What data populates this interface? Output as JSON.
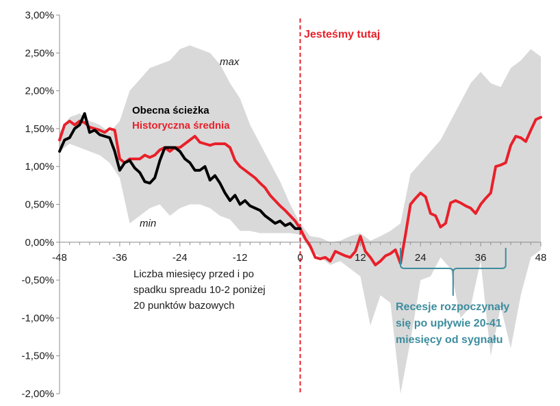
{
  "chart_data": {
    "type": "line",
    "title": "",
    "xlabel": "",
    "ylabel": "",
    "xlim": [
      -48,
      48
    ],
    "ylim": [
      -2.0,
      3.0
    ],
    "x_ticks": [
      -48,
      -36,
      -24,
      -12,
      0,
      12,
      24,
      36,
      48
    ],
    "x_tick_labels": [
      "-48",
      "-36",
      "-24",
      "-12",
      "0",
      "12",
      "24",
      "36",
      "48"
    ],
    "y_ticks": [
      3.0,
      2.5,
      2.0,
      1.5,
      1.0,
      0.5,
      0.0,
      -0.5,
      -1.0,
      -1.5,
      -2.0
    ],
    "y_tick_labels": [
      "3,00%",
      "2,50%",
      "2,00%",
      "1,50%",
      "1,00%",
      "0,50%",
      "0,00%",
      "-0,50%",
      "-1,00%",
      "-1,50%",
      "-2,00%"
    ],
    "x_axis_annotation": [
      "Liczba miesięcy przed i po",
      "spadku spreadu 10-2 poniżej",
      "20 punktów bazowych"
    ],
    "legend": [
      {
        "name": "Obecna ścieżka",
        "color": "#000000"
      },
      {
        "name": "Historyczna średnia",
        "color": "#e8202a"
      }
    ],
    "band_labels": {
      "max": "max",
      "min": "min"
    },
    "vertical_marker": {
      "x": 0,
      "label": "Jesteśmy tutaj",
      "color": "#e8202a"
    },
    "recession_annotation": {
      "x_range": [
        20,
        41
      ],
      "lines": [
        "Recesje rozpoczynały",
        "się po upływie 20-41",
        "miesięcy od sygnału"
      ],
      "color": "#3d8d9e"
    },
    "band": {
      "x": [
        -48,
        -46,
        -44,
        -42,
        -40,
        -38,
        -36,
        -34,
        -32,
        -30,
        -28,
        -26,
        -24,
        -22,
        -20,
        -18,
        -16,
        -14,
        -12,
        -10,
        -8,
        -6,
        -4,
        -2,
        0,
        2,
        4,
        6,
        8,
        10,
        12,
        14,
        16,
        18,
        20,
        22,
        24,
        26,
        28,
        30,
        32,
        34,
        36,
        38,
        40,
        42,
        44,
        46,
        48
      ],
      "upper": [
        1.45,
        1.65,
        1.7,
        1.6,
        1.55,
        1.45,
        1.6,
        2.0,
        2.15,
        2.3,
        2.35,
        2.4,
        2.55,
        2.6,
        2.55,
        2.5,
        2.35,
        2.1,
        1.9,
        1.55,
        1.3,
        1.05,
        0.8,
        0.5,
        0.25,
        0.08,
        0.06,
        0.0,
        0.02,
        0.08,
        0.12,
        0.02,
        0.08,
        0.15,
        0.25,
        0.9,
        1.05,
        1.2,
        1.35,
        1.6,
        1.85,
        2.1,
        2.25,
        2.1,
        2.05,
        2.3,
        2.4,
        2.55,
        2.45
      ],
      "lower": [
        1.2,
        1.3,
        1.25,
        1.2,
        1.15,
        1.05,
        0.85,
        0.25,
        0.35,
        0.45,
        0.5,
        0.35,
        0.45,
        0.5,
        0.5,
        0.45,
        0.35,
        0.3,
        0.15,
        0.15,
        0.12,
        0.12,
        0.12,
        0.12,
        0.1,
        -0.1,
        -0.2,
        -0.3,
        -0.25,
        -0.35,
        -0.45,
        -1.1,
        -0.7,
        -0.8,
        -2.0,
        -1.3,
        -0.5,
        -0.45,
        -0.2,
        -0.35,
        -1.0,
        -0.85,
        -0.25,
        -1.5,
        -0.85,
        -1.4,
        -0.7,
        -0.2,
        -0.1
      ]
    },
    "series": [
      {
        "name": "Historyczna średnia",
        "color": "#e8202a",
        "x": [
          -48,
          -47,
          -46,
          -45,
          -44,
          -43,
          -42,
          -41,
          -40,
          -39,
          -38,
          -37,
          -36,
          -35,
          -34,
          -33,
          -32,
          -31,
          -30,
          -29,
          -28,
          -27,
          -26,
          -25,
          -24,
          -23,
          -22,
          -21,
          -20,
          -19,
          -18,
          -17,
          -16,
          -15,
          -14,
          -13,
          -12,
          -11,
          -10,
          -9,
          -8,
          -7,
          -6,
          -5,
          -4,
          -3,
          -2,
          -1,
          0,
          1,
          2,
          3,
          4,
          5,
          6,
          7,
          8,
          9,
          10,
          11,
          12,
          13,
          14,
          15,
          16,
          17,
          18,
          19,
          20,
          21,
          22,
          23,
          24,
          25,
          26,
          27,
          28,
          29,
          30,
          31,
          32,
          33,
          34,
          35,
          36,
          37,
          38,
          39,
          40,
          41,
          42,
          43,
          44,
          45,
          46,
          47,
          48
        ],
        "values": [
          1.35,
          1.55,
          1.6,
          1.55,
          1.6,
          1.58,
          1.52,
          1.5,
          1.48,
          1.45,
          1.5,
          1.48,
          1.1,
          1.05,
          1.1,
          1.1,
          1.1,
          1.15,
          1.12,
          1.15,
          1.22,
          1.25,
          1.2,
          1.25,
          1.25,
          1.3,
          1.35,
          1.4,
          1.32,
          1.3,
          1.28,
          1.3,
          1.3,
          1.3,
          1.25,
          1.08,
          1.0,
          0.95,
          0.9,
          0.85,
          0.78,
          0.72,
          0.62,
          0.55,
          0.48,
          0.42,
          0.35,
          0.28,
          0.18,
          0.05,
          -0.05,
          -0.2,
          -0.22,
          -0.2,
          -0.25,
          -0.12,
          -0.15,
          -0.18,
          -0.2,
          -0.12,
          0.08,
          -0.12,
          -0.2,
          -0.3,
          -0.25,
          -0.18,
          -0.15,
          -0.1,
          -0.28,
          0.1,
          0.5,
          0.58,
          0.65,
          0.6,
          0.38,
          0.35,
          0.2,
          0.25,
          0.52,
          0.55,
          0.52,
          0.48,
          0.45,
          0.38,
          0.5,
          0.58,
          0.65,
          1.0,
          1.02,
          1.05,
          1.28,
          1.4,
          1.38,
          1.33,
          1.48,
          1.62,
          1.65
        ]
      },
      {
        "name": "Obecna ścieżka",
        "color": "#000000",
        "x": [
          -48,
          -47,
          -46,
          -45,
          -44,
          -43,
          -42,
          -41,
          -40,
          -39,
          -38,
          -37,
          -36,
          -35,
          -34,
          -33,
          -32,
          -31,
          -30,
          -29,
          -28,
          -27,
          -26,
          -25,
          -24,
          -23,
          -22,
          -21,
          -20,
          -19,
          -18,
          -17,
          -16,
          -15,
          -14,
          -13,
          -12,
          -11,
          -10,
          -9,
          -8,
          -7,
          -6,
          -5,
          -4,
          -3,
          -2,
          -1,
          0
        ],
        "values": [
          1.2,
          1.35,
          1.38,
          1.5,
          1.55,
          1.7,
          1.45,
          1.48,
          1.42,
          1.4,
          1.38,
          1.2,
          0.95,
          1.05,
          1.08,
          0.98,
          0.92,
          0.8,
          0.78,
          0.85,
          1.08,
          1.25,
          1.25,
          1.25,
          1.2,
          1.1,
          1.05,
          0.95,
          0.95,
          1.0,
          0.82,
          0.88,
          0.78,
          0.65,
          0.55,
          0.62,
          0.5,
          0.55,
          0.48,
          0.45,
          0.42,
          0.35,
          0.3,
          0.25,
          0.28,
          0.22,
          0.25,
          0.18,
          0.18
        ]
      }
    ]
  }
}
